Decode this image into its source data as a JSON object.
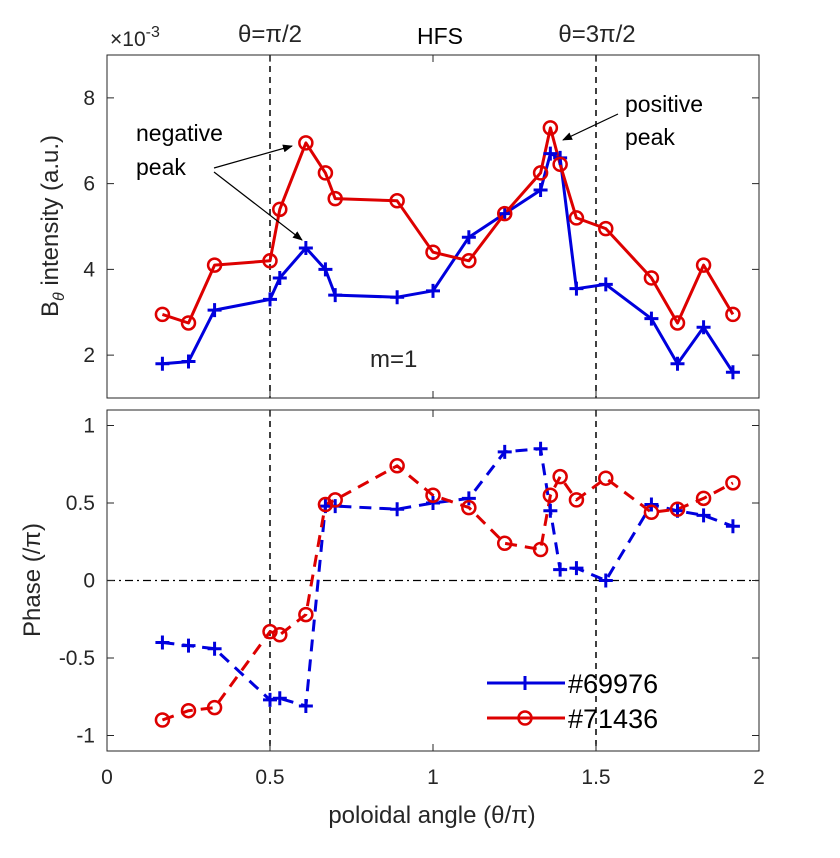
{
  "chart_data": [
    {
      "type": "line",
      "panel": "top",
      "ylabel_main": "B",
      "ylabel_sub": "θ",
      "ylabel_rest": " intensity (a.u.)",
      "exponent_label": "×10",
      "exponent_power": "-3",
      "xlim": [
        0,
        2
      ],
      "ylim": [
        1,
        9
      ],
      "yticks": [
        2,
        4,
        6,
        8
      ],
      "ytick_labels": [
        "2",
        "4",
        "6",
        "8"
      ],
      "x_tick_labels_shown": false,
      "series": [
        {
          "name": "#69976",
          "color": "#0000dd",
          "marker": "plus",
          "linestyle": "solid",
          "x": [
            0.17,
            0.25,
            0.33,
            0.5,
            0.53,
            0.61,
            0.67,
            0.7,
            0.89,
            1.0,
            1.11,
            1.22,
            1.33,
            1.36,
            1.39,
            1.44,
            1.53,
            1.67,
            1.75,
            1.83,
            1.92
          ],
          "y": [
            1.8,
            1.85,
            3.05,
            3.3,
            3.8,
            4.5,
            4.0,
            3.4,
            3.35,
            3.5,
            4.75,
            5.3,
            5.85,
            6.7,
            6.6,
            3.55,
            3.65,
            2.85,
            1.8,
            2.65,
            1.6
          ]
        },
        {
          "name": "#71436",
          "color": "#dd0000",
          "marker": "circle",
          "linestyle": "solid",
          "x": [
            0.17,
            0.25,
            0.33,
            0.5,
            0.53,
            0.61,
            0.67,
            0.7,
            0.89,
            1.0,
            1.11,
            1.22,
            1.33,
            1.36,
            1.39,
            1.44,
            1.53,
            1.67,
            1.75,
            1.83,
            1.92
          ],
          "y": [
            2.95,
            2.75,
            4.1,
            4.2,
            5.4,
            6.95,
            6.25,
            5.65,
            5.6,
            4.4,
            4.2,
            5.3,
            6.25,
            7.3,
            6.45,
            5.2,
            4.95,
            3.8,
            2.75,
            4.1,
            2.95
          ]
        }
      ]
    },
    {
      "type": "line",
      "panel": "bottom",
      "ylabel": "Phase (/π)",
      "xlabel": "poloidal angle (θ/π)",
      "xlim": [
        0,
        2
      ],
      "ylim": [
        -1.1,
        1.1
      ],
      "xticks": [
        0,
        0.5,
        1,
        1.5,
        2
      ],
      "xtick_labels": [
        "0",
        "0.5",
        "1",
        "1.5",
        "2"
      ],
      "yticks": [
        -1,
        -0.5,
        0,
        0.5,
        1
      ],
      "ytick_labels": [
        "-1",
        "-0.5",
        "0",
        "0.5",
        "1"
      ],
      "series": [
        {
          "name": "#69976",
          "color": "#0000dd",
          "marker": "plus",
          "linestyle": "dashed",
          "x": [
            0.17,
            0.25,
            0.33,
            0.5,
            0.53,
            0.61,
            0.67,
            0.7,
            0.89,
            1.0,
            1.11,
            1.22,
            1.33,
            1.36,
            1.39,
            1.44,
            1.53,
            1.67,
            1.75,
            1.83,
            1.92
          ],
          "y": [
            -0.4,
            -0.42,
            -0.44,
            -0.77,
            -0.76,
            -0.81,
            0.48,
            0.48,
            0.46,
            0.5,
            0.53,
            0.83,
            0.85,
            0.45,
            0.07,
            0.08,
            0.0,
            0.49,
            0.45,
            0.42,
            0.35
          ]
        },
        {
          "name": "#71436",
          "color": "#dd0000",
          "marker": "circle",
          "linestyle": "dashed",
          "x": [
            0.17,
            0.25,
            0.33,
            0.5,
            0.53,
            0.61,
            0.67,
            0.7,
            0.89,
            1.0,
            1.11,
            1.22,
            1.33,
            1.36,
            1.39,
            1.44,
            1.53,
            1.67,
            1.75,
            1.83,
            1.92
          ],
          "y": [
            -0.9,
            -0.84,
            -0.82,
            -0.33,
            -0.35,
            -0.22,
            0.49,
            0.52,
            0.74,
            0.55,
            0.47,
            0.24,
            0.2,
            0.55,
            0.67,
            0.52,
            0.66,
            0.44,
            0.46,
            0.53,
            0.63
          ]
        }
      ],
      "legend_position": "bottom-right"
    }
  ],
  "annotations": {
    "theta_half_label": "θ=π/2",
    "hfs_label": "HFS",
    "theta_three_half_label": "θ=3π/2",
    "negative_peak_line1": "negative",
    "negative_peak_line2": "peak",
    "positive_peak_line1": "positive",
    "positive_peak_line2": "peak",
    "mode_label": "m=1",
    "vertical_lines_at": [
      0.5,
      1.5
    ]
  },
  "legend": {
    "entries": [
      "#69976",
      "#71436"
    ]
  }
}
